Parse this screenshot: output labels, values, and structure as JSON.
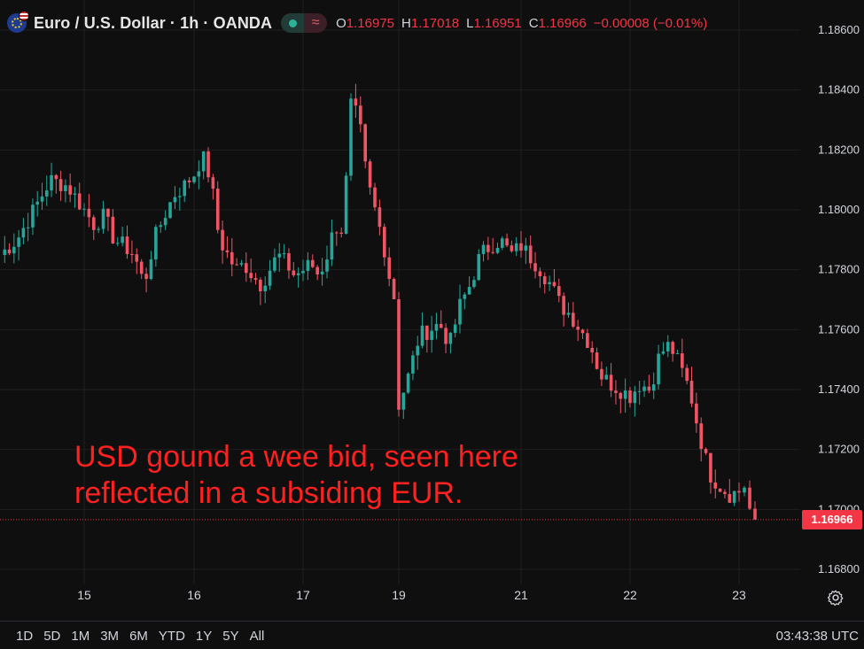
{
  "header": {
    "title": "Euro / U.S. Dollar · 1h · OANDA",
    "symbol_icon": "eurusd-flag-icon",
    "status_icon": "market-open-dot-icon",
    "feed_icon": "delayed-feed-icon",
    "feed_glyph": "≈",
    "ohlc": {
      "o_label": "O",
      "o": "1.16975",
      "h_label": "H",
      "h": "1.17018",
      "l_label": "L",
      "l": "1.16951",
      "c_label": "C",
      "c": "1.16966",
      "change": "−0.00008 (−0.01%)"
    }
  },
  "annotation": {
    "line1": "USD gound a wee bid, seen here",
    "line2": "reflected in a subsiding EUR."
  },
  "last_price_tag": "1.16966",
  "colors": {
    "up": "#26a69a",
    "down": "#f05565",
    "background": "#0f0f0f",
    "grid": "#1f1f1f",
    "text": "#d1d4dc",
    "price_line": "#f23645"
  },
  "time_ranges": [
    "1D",
    "5D",
    "1M",
    "3M",
    "6M",
    "YTD",
    "1Y",
    "5Y",
    "All"
  ],
  "clock": "03:43:38 UTC",
  "settings_icon": "settings-gear-icon",
  "chart_data": {
    "type": "candlestick",
    "symbol": "EURUSD",
    "interval": "1h",
    "y_axis_side": "right",
    "ylim": [
      1.167,
      1.1867
    ],
    "y_ticks": [
      "1.18600",
      "1.18400",
      "1.18200",
      "1.18000",
      "1.17800",
      "1.17600",
      "1.17400",
      "1.17200",
      "1.17000",
      "1.16800"
    ],
    "x_ticks": [
      "15",
      "16",
      "17",
      "19",
      "21",
      "22",
      "23"
    ],
    "grid": true,
    "last_price": 1.16966,
    "segments": [
      {
        "from_tick": "start",
        "to_tick": "15",
        "points": [
          1.1785,
          1.179,
          1.18,
          1.181,
          1.1808,
          1.18
        ]
      },
      {
        "from_tick": "15",
        "to_tick": "16",
        "points": [
          1.18,
          1.1795,
          1.1798,
          1.179,
          1.1788,
          1.1785,
          1.1775,
          1.179,
          1.1798,
          1.1805,
          1.1808,
          1.1812
        ]
      },
      {
        "from_tick": "16",
        "to_tick": "17",
        "points": [
          1.1812,
          1.1818,
          1.181,
          1.179,
          1.1785,
          1.178,
          1.1782,
          1.1778,
          1.1775,
          1.178,
          1.1785,
          1.1782,
          1.1778,
          1.178
        ]
      },
      {
        "from_tick": "17",
        "to_tick": "19",
        "points": [
          1.178,
          1.1782,
          1.1778,
          1.1785,
          1.1795,
          1.1793,
          1.1835,
          1.183,
          1.181,
          1.18,
          1.179,
          1.1775,
          1.1765
        ]
      },
      {
        "from_tick": "19",
        "to_tick": "21",
        "points": [
          1.1735,
          1.1745,
          1.1758,
          1.176,
          1.1762,
          1.1755,
          1.1768,
          1.1775,
          1.1785,
          1.1788,
          1.179,
          1.1785,
          1.1788
        ]
      },
      {
        "from_tick": "21",
        "to_tick": "22",
        "points": [
          1.1788,
          1.1784,
          1.178,
          1.1775,
          1.1768,
          1.1765,
          1.176,
          1.1755,
          1.1745,
          1.1742,
          1.174,
          1.1738
        ]
      },
      {
        "from_tick": "22",
        "to_tick": "23",
        "points": [
          1.1738,
          1.1742,
          1.174,
          1.1752,
          1.1755,
          1.1748,
          1.174,
          1.1725,
          1.1712,
          1.1708,
          1.1705,
          1.1706
        ]
      },
      {
        "from_tick": "23",
        "to_tick": "end",
        "points": [
          1.1706,
          1.1708,
          1.17,
          1.16966
        ]
      }
    ]
  }
}
